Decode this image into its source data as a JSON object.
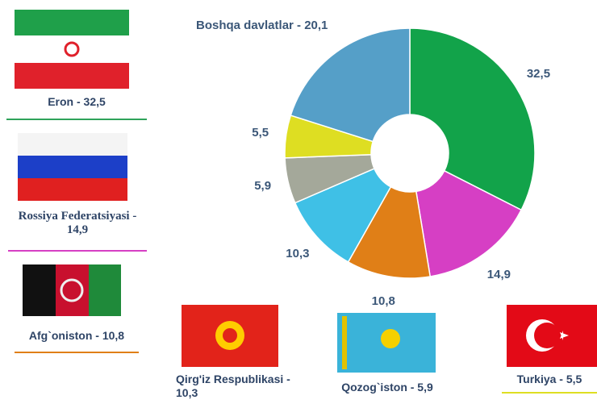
{
  "chart_data": {
    "type": "pie",
    "values": [
      32.5,
      14.9,
      10.8,
      10.3,
      5.9,
      5.5,
      20.1
    ],
    "value_labels": [
      "32,5",
      "14,9",
      "10,8",
      "10,3",
      "5,9",
      "5,5",
      "Boshqa davlatlar - 20,1"
    ],
    "colors": [
      "#12a34a",
      "#d63fc4",
      "#e07f17",
      "#3fc0e6",
      "#a4a89a",
      "#dede22",
      "#559fc8"
    ],
    "flags": [
      {
        "label": "Eron - 32,5"
      },
      {
        "label": "Rossiya Federatsiyasi - 14,9"
      },
      {
        "label": "Afg`oniston - 10,8"
      },
      {
        "label": "Qirg'iz Respublikasi - 10,3"
      },
      {
        "label": "Qozog`iston - 5,9"
      },
      {
        "label": "Turkiya - 5,5"
      }
    ]
  }
}
